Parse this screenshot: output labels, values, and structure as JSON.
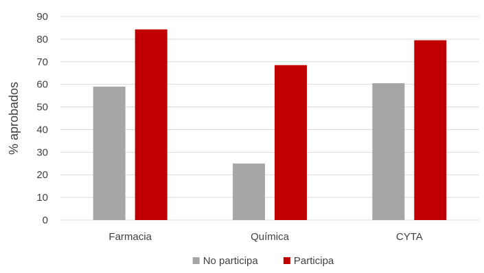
{
  "chart_data": {
    "type": "bar",
    "title": "...p y ...",
    "xlabel": "",
    "ylabel": "% aprobados",
    "ylim": [
      0,
      90
    ],
    "yticks": [
      0,
      10,
      20,
      30,
      40,
      50,
      60,
      70,
      80,
      90
    ],
    "grid": true,
    "legend_position": "bottom",
    "categories": [
      "Farmacia",
      "Química",
      "CYTA"
    ],
    "series": [
      {
        "name": "No participa",
        "color": "#A6A6A6",
        "values": [
          59,
          25,
          60.5
        ]
      },
      {
        "name": "Participa",
        "color": "#C00000",
        "values": [
          84.3,
          68.5,
          79.5
        ]
      }
    ]
  }
}
